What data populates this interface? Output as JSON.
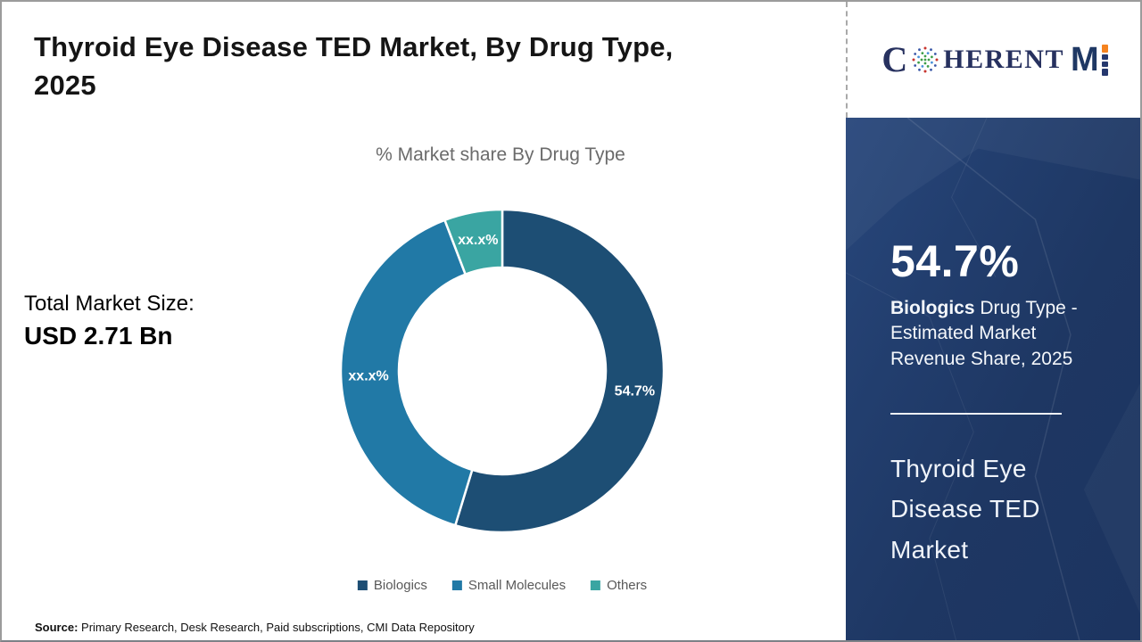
{
  "header": {
    "title_line1": "Thyroid Eye Disease TED Market, By Drug Type,",
    "title_line2": "2025"
  },
  "brand": {
    "logo_prefix": "C",
    "logo_middle": "HERENT",
    "logo_m": "M",
    "navy": "#27315f",
    "orange": "#f5831f"
  },
  "main": {
    "chart_subtitle": "% Market share By Drug Type",
    "total_label": "Total Market Size:",
    "total_value": "USD 2.71 Bn"
  },
  "chart_data": {
    "type": "pie",
    "donut": true,
    "title": "% Market share By Drug Type",
    "legend_position": "bottom",
    "slices": [
      {
        "name": "Biologics",
        "value": 54.7,
        "label": "54.7%",
        "color": "#1d4e74"
      },
      {
        "name": "Small Molecules",
        "value": 39.5,
        "label": "xx.x%",
        "color": "#2179a6"
      },
      {
        "name": "Others",
        "value": 5.8,
        "label": "xx.x%",
        "color": "#3aa5a2"
      }
    ]
  },
  "sidebar": {
    "stat_value": "54.7%",
    "stat_highlight": "Biologics",
    "stat_desc_rest": " Drug Type - Estimated Market Revenue Share, 2025",
    "market_title": "Thyroid Eye Disease TED Market"
  },
  "footer": {
    "source_label": "Source:",
    "source_text": " Primary Research, Desk Research, Paid subscriptions, CMI Data Repository"
  }
}
